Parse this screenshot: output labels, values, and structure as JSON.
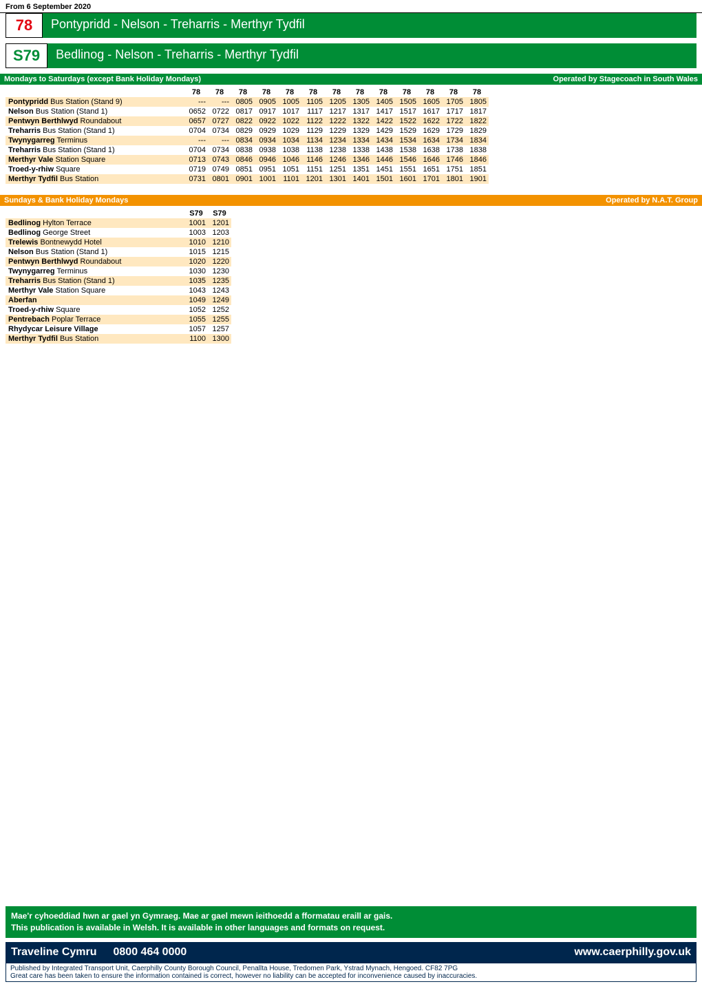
{
  "header_note": "From 6 September 2020",
  "routes": [
    {
      "num": "78",
      "num_color": "#e30613",
      "title": "Pontypridd - Nelson - Treharris - Merthyr Tydfil"
    },
    {
      "num": "S79",
      "num_color": "#008d36",
      "title": "Bedlinog - Nelson - Treharris - Merthyr Tydfil"
    }
  ],
  "weekday": {
    "label": "Mondays to Saturdays (except Bank Holiday Mondays)",
    "operator": "Operated by Stagecoach in South Wales",
    "service_headers": [
      "78",
      "78",
      "78",
      "78",
      "78",
      "78",
      "78",
      "78",
      "78",
      "78",
      "78",
      "78",
      "78"
    ],
    "stops": [
      {
        "main": "Pontypridd",
        "sub": " Bus Station (Stand 9)",
        "shade": true,
        "times": [
          "---",
          "---",
          "0805",
          "0905",
          "1005",
          "1105",
          "1205",
          "1305",
          "1405",
          "1505",
          "1605",
          "1705",
          "1805"
        ]
      },
      {
        "main": "Nelson",
        "sub": " Bus Station (Stand 1)",
        "shade": false,
        "times": [
          "0652",
          "0722",
          "0817",
          "0917",
          "1017",
          "1117",
          "1217",
          "1317",
          "1417",
          "1517",
          "1617",
          "1717",
          "1817"
        ]
      },
      {
        "main": "Pentwyn Berthlwyd",
        "sub": " Roundabout",
        "shade": true,
        "times": [
          "0657",
          "0727",
          "0822",
          "0922",
          "1022",
          "1122",
          "1222",
          "1322",
          "1422",
          "1522",
          "1622",
          "1722",
          "1822"
        ]
      },
      {
        "main": "Treharris",
        "sub": " Bus Station (Stand 1)",
        "shade": false,
        "times": [
          "0704",
          "0734",
          "0829",
          "0929",
          "1029",
          "1129",
          "1229",
          "1329",
          "1429",
          "1529",
          "1629",
          "1729",
          "1829"
        ]
      },
      {
        "main": "Twynygarreg",
        "sub": " Terminus",
        "shade": true,
        "times": [
          "---",
          "---",
          "0834",
          "0934",
          "1034",
          "1134",
          "1234",
          "1334",
          "1434",
          "1534",
          "1634",
          "1734",
          "1834"
        ]
      },
      {
        "main": "Treharris",
        "sub": " Bus Station (Stand 1)",
        "shade": false,
        "times": [
          "0704",
          "0734",
          "0838",
          "0938",
          "1038",
          "1138",
          "1238",
          "1338",
          "1438",
          "1538",
          "1638",
          "1738",
          "1838"
        ]
      },
      {
        "main": "Merthyr Vale",
        "sub": " Station Square",
        "shade": true,
        "times": [
          "0713",
          "0743",
          "0846",
          "0946",
          "1046",
          "1146",
          "1246",
          "1346",
          "1446",
          "1546",
          "1646",
          "1746",
          "1846"
        ]
      },
      {
        "main": "Troed-y-rhiw",
        "sub": " Square",
        "shade": false,
        "times": [
          "0719",
          "0749",
          "0851",
          "0951",
          "1051",
          "1151",
          "1251",
          "1351",
          "1451",
          "1551",
          "1651",
          "1751",
          "1851"
        ]
      },
      {
        "main": "Merthyr Tydfil",
        "sub": " Bus Station",
        "shade": true,
        "times": [
          "0731",
          "0801",
          "0901",
          "1001",
          "1101",
          "1201",
          "1301",
          "1401",
          "1501",
          "1601",
          "1701",
          "1801",
          "1901"
        ]
      }
    ]
  },
  "sunday": {
    "label": "Sundays & Bank Holiday Mondays",
    "operator": "Operated by N.A.T. Group",
    "service_headers": [
      "S79",
      "S79"
    ],
    "stops": [
      {
        "main": "Bedlinog",
        "sub": " Hylton Terrace",
        "shade": true,
        "times": [
          "1001",
          "1201"
        ]
      },
      {
        "main": "Bedlinog",
        "sub": " George Street",
        "shade": false,
        "times": [
          "1003",
          "1203"
        ]
      },
      {
        "main": "Trelewis",
        "sub": " Bontnewydd Hotel",
        "shade": true,
        "times": [
          "1010",
          "1210"
        ]
      },
      {
        "main": "Nelson",
        "sub": " Bus Station (Stand 1)",
        "shade": false,
        "times": [
          "1015",
          "1215"
        ]
      },
      {
        "main": "Pentwyn Berthlwyd",
        "sub": " Roundabout",
        "shade": true,
        "times": [
          "1020",
          "1220"
        ]
      },
      {
        "main": "Twynygarreg",
        "sub": " Terminus",
        "shade": false,
        "times": [
          "1030",
          "1230"
        ]
      },
      {
        "main": "Treharris",
        "sub": " Bus Station (Stand 1)",
        "shade": true,
        "times": [
          "1035",
          "1235"
        ]
      },
      {
        "main": "Merthyr Vale",
        "sub": " Station Square",
        "shade": false,
        "times": [
          "1043",
          "1243"
        ]
      },
      {
        "main": "Aberfan",
        "sub": "",
        "shade": true,
        "times": [
          "1049",
          "1249"
        ]
      },
      {
        "main": "Troed-y-rhiw",
        "sub": " Square",
        "shade": false,
        "times": [
          "1052",
          "1252"
        ]
      },
      {
        "main": "Pentrebach",
        "sub": " Poplar Terrace",
        "shade": true,
        "times": [
          "1055",
          "1255"
        ]
      },
      {
        "main": "Rhydycar Leisure Village",
        "sub": "",
        "shade": false,
        "times": [
          "1057",
          "1257"
        ]
      },
      {
        "main": "Merthyr Tydfil",
        "sub": " Bus Station",
        "shade": true,
        "times": [
          "1100",
          "1300"
        ]
      }
    ]
  },
  "green_notice": {
    "line1": "Mae'r cyhoeddiad hwn ar gael yn Gymraeg. Mae ar gael mewn ieithoedd a fformatau eraill ar gais.",
    "line2": "This publication is available in Welsh. It is available in other languages and formats on request."
  },
  "traveline": {
    "name": "Traveline Cymru",
    "phone": "0800 464 0000",
    "url": "www.caerphilly.gov.uk"
  },
  "footer": {
    "line1": "Published by Integrated Transport Unit, Caerphilly County Borough Council, Penallta House, Tredomen Park, Ystrad Mynach, Hengoed. CF82 7PG",
    "line2": "Great care has been taken to ensure the information contained is correct, however no liability can be accepted for inconvenience caused by inaccuracies."
  }
}
